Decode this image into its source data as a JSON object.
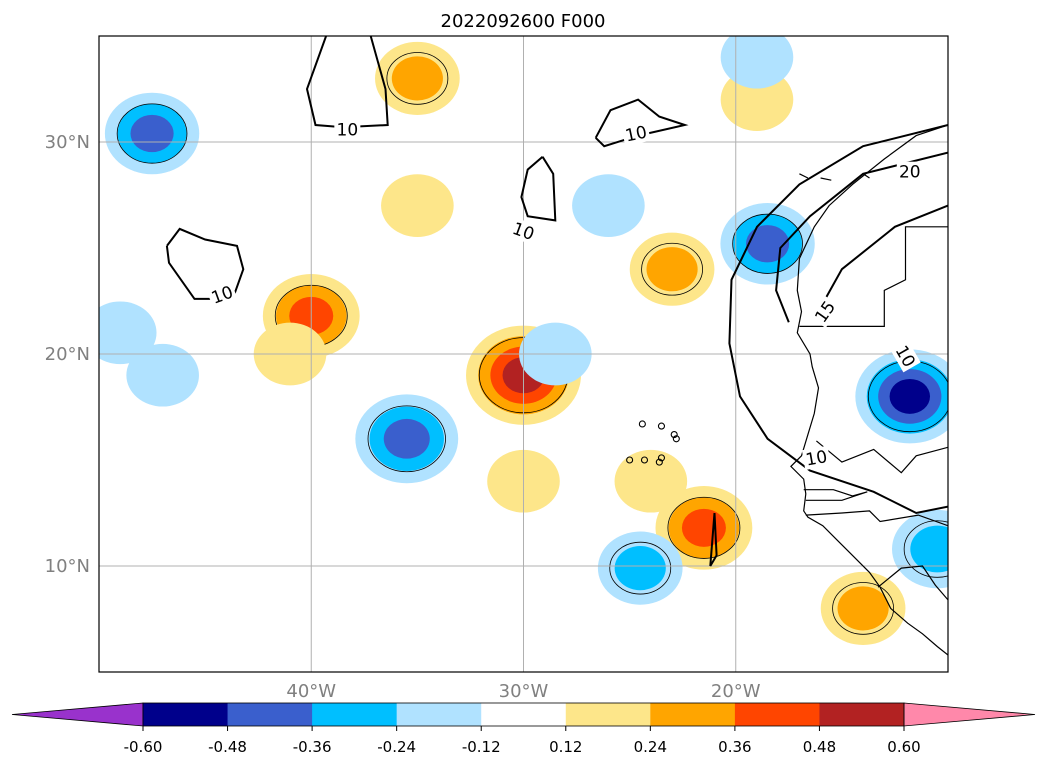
{
  "title": "2022092600 F000",
  "map": {
    "projection": "PlateCarree",
    "lon_range": [
      -50,
      -10
    ],
    "lat_range": [
      5,
      35
    ],
    "gridlines": true,
    "coastlines": true,
    "country_borders": true
  },
  "axes": {
    "x_ticks": [
      {
        "lon": -40,
        "label": "40°W"
      },
      {
        "lon": -30,
        "label": "30°W"
      },
      {
        "lon": -20,
        "label": "20°W"
      }
    ],
    "y_ticks": [
      {
        "lat": 10,
        "label": "10°N"
      },
      {
        "lat": 20,
        "label": "20°N"
      },
      {
        "lat": 30,
        "label": "30°N"
      }
    ]
  },
  "colorbar": {
    "extend": "both",
    "bounds": [
      "-0.60",
      "-0.48",
      "-0.36",
      "-0.24",
      "-0.12",
      "0.12",
      "0.24",
      "0.36",
      "0.48",
      "0.60"
    ],
    "colors": [
      "#9932cc",
      "#00008b",
      "#3a5fcd",
      "#00bfff",
      "#b0e2ff",
      "#ffffff",
      "#fde68a",
      "#ffa500",
      "#ff4500",
      "#b22222",
      "#ff88aa"
    ]
  },
  "contour_labels": [
    {
      "text": "10",
      "lon": -38.3,
      "lat": 30.6,
      "rot": 0
    },
    {
      "text": "10",
      "lon": -24.7,
      "lat": 30.4,
      "rot": -12
    },
    {
      "text": "10",
      "lon": -30.0,
      "lat": 25.8,
      "rot": 20
    },
    {
      "text": "10",
      "lon": -44.2,
      "lat": 22.8,
      "rot": -20
    },
    {
      "text": "20",
      "lon": -11.8,
      "lat": 28.6,
      "rot": 0
    },
    {
      "text": "15",
      "lon": -15.8,
      "lat": 22.0,
      "rot": -55
    },
    {
      "text": "10",
      "lon": -12.0,
      "lat": 19.9,
      "rot": 60
    },
    {
      "text": "10",
      "lon": -16.2,
      "lat": 15.1,
      "rot": -10
    }
  ],
  "chart_data": {
    "type": "heatmap",
    "title": "2022092600 F000",
    "xlabel": "",
    "ylabel": "",
    "xlim": [
      -50,
      -10
    ],
    "ylim": [
      5,
      35
    ],
    "anomaly_features": [
      {
        "lon": -30.0,
        "lat": 19.0,
        "peak": 0.55,
        "sign": "positive"
      },
      {
        "lon": -40.0,
        "lat": 21.8,
        "peak": 0.4,
        "sign": "positive"
      },
      {
        "lon": -21.5,
        "lat": 11.8,
        "peak": 0.4,
        "sign": "positive"
      },
      {
        "lon": -23.0,
        "lat": 24.0,
        "peak": 0.3,
        "sign": "positive"
      },
      {
        "lon": -14.0,
        "lat": 8.0,
        "peak": 0.3,
        "sign": "positive"
      },
      {
        "lon": -35.0,
        "lat": 33.0,
        "peak": 0.3,
        "sign": "positive"
      },
      {
        "lon": -35.0,
        "lat": 27.0,
        "peak": 0.2,
        "sign": "positive"
      },
      {
        "lon": -30.0,
        "lat": 14.0,
        "peak": 0.2,
        "sign": "positive"
      },
      {
        "lon": -41.0,
        "lat": 20.0,
        "peak": 0.2,
        "sign": "positive"
      },
      {
        "lon": -24.0,
        "lat": 14.0,
        "peak": 0.2,
        "sign": "positive"
      },
      {
        "lon": -19.0,
        "lat": 32.0,
        "peak": 0.2,
        "sign": "positive"
      },
      {
        "lon": -35.5,
        "lat": 16.0,
        "peak": -0.45,
        "sign": "negative"
      },
      {
        "lon": -47.5,
        "lat": 30.4,
        "peak": -0.38,
        "sign": "negative"
      },
      {
        "lon": -11.8,
        "lat": 18.0,
        "peak": -0.5,
        "sign": "negative"
      },
      {
        "lon": -18.5,
        "lat": 25.2,
        "peak": -0.38,
        "sign": "negative"
      },
      {
        "lon": -24.5,
        "lat": 9.9,
        "peak": -0.3,
        "sign": "negative"
      },
      {
        "lon": -10.5,
        "lat": 10.8,
        "peak": -0.35,
        "sign": "negative"
      },
      {
        "lon": -28.5,
        "lat": 20.0,
        "peak": -0.2,
        "sign": "negative"
      },
      {
        "lon": -26.0,
        "lat": 27.0,
        "peak": -0.2,
        "sign": "negative"
      },
      {
        "lon": -19.0,
        "lat": 34.0,
        "peak": -0.2,
        "sign": "negative"
      },
      {
        "lon": -49.0,
        "lat": 21.0,
        "peak": -0.2,
        "sign": "negative"
      },
      {
        "lon": -47.0,
        "lat": 19.0,
        "peak": -0.2,
        "sign": "negative"
      }
    ],
    "contour_levels": [
      10,
      15,
      20
    ]
  }
}
